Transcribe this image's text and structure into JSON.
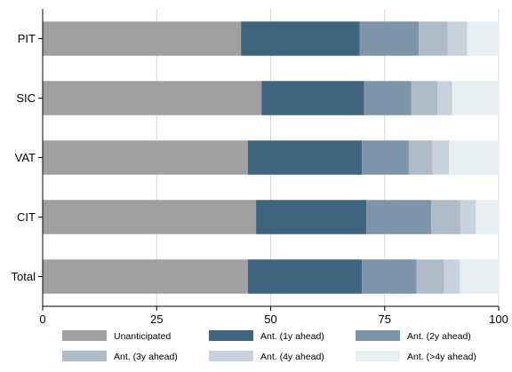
{
  "chart_data": {
    "type": "bar",
    "orientation": "horizontal",
    "stacked": true,
    "normalized_percent": true,
    "title": "",
    "xlabel": "",
    "ylabel": "",
    "xlim": [
      0,
      100
    ],
    "x_ticks": [
      0,
      25,
      50,
      75,
      100
    ],
    "categories": [
      "PIT",
      "SIC",
      "VAT",
      "CIT",
      "Total"
    ],
    "series": [
      {
        "name": "Unanticipated",
        "color": "#a0a0a0",
        "values": [
          43.5,
          48,
          45,
          46.8,
          45
        ]
      },
      {
        "name": "Ant. (1y ahead)",
        "color": "#3e647f",
        "values": [
          26,
          22.5,
          25,
          24.2,
          25
        ]
      },
      {
        "name": "Ant. (2y ahead)",
        "color": "#7e94a9",
        "values": [
          13,
          10.3,
          10.3,
          14.2,
          12
        ]
      },
      {
        "name": "Ant. (3y ahead)",
        "color": "#aebbc8",
        "values": [
          6.3,
          5.8,
          5.2,
          6.4,
          6
        ]
      },
      {
        "name": "Ant. (4y ahead)",
        "color": "#c6d2dd",
        "values": [
          4.3,
          3.2,
          3.6,
          3.4,
          3.5
        ]
      },
      {
        "name": "Ant. (>4y ahead)",
        "color": "#e8eff3",
        "values": [
          6.9,
          10.2,
          10.9,
          5,
          8.5
        ]
      }
    ],
    "grid": {
      "vertical": true,
      "horizontal": false
    },
    "legend_position": "bottom"
  }
}
